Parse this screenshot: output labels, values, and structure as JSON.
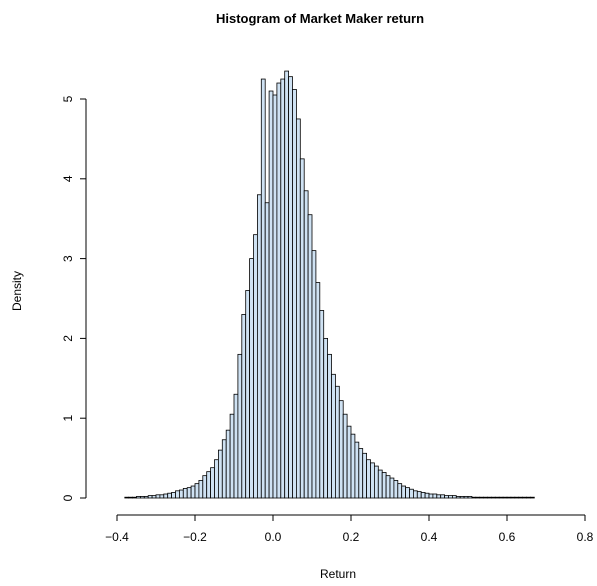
{
  "chart_data": {
    "type": "bar",
    "title": "Histogram of Market Maker return",
    "xlabel": "Return",
    "ylabel": "Density",
    "xlim": [
      -0.44,
      0.79
    ],
    "ylim": [
      0,
      5.38
    ],
    "xticks": [
      "-0.4",
      "-0.2",
      "0.0",
      "0.2",
      "0.4",
      "0.6",
      "0.8"
    ],
    "yticks": [
      "0",
      "1",
      "2",
      "3",
      "4",
      "5"
    ],
    "bin_width": 0.01,
    "bar_color": "#cfe2f3",
    "bins_start": [
      -0.38,
      -0.37,
      -0.36,
      -0.35,
      -0.34,
      -0.33,
      -0.32,
      -0.31,
      -0.3,
      -0.29,
      -0.28,
      -0.27,
      -0.26,
      -0.25,
      -0.24,
      -0.23,
      -0.22,
      -0.21,
      -0.2,
      -0.19,
      -0.18,
      -0.17,
      -0.16,
      -0.15,
      -0.14,
      -0.13,
      -0.12,
      -0.11,
      -0.1,
      -0.09,
      -0.08,
      -0.07,
      -0.06,
      -0.05,
      -0.04,
      -0.03,
      -0.02,
      -0.01,
      0.0,
      0.01,
      0.02,
      0.03,
      0.04,
      0.05,
      0.06,
      0.07,
      0.08,
      0.09,
      0.1,
      0.11,
      0.12,
      0.13,
      0.14,
      0.15,
      0.16,
      0.17,
      0.18,
      0.19,
      0.2,
      0.21,
      0.22,
      0.23,
      0.24,
      0.25,
      0.26,
      0.27,
      0.28,
      0.29,
      0.3,
      0.31,
      0.32,
      0.33,
      0.34,
      0.35,
      0.36,
      0.37,
      0.38,
      0.39,
      0.4,
      0.41,
      0.42,
      0.43,
      0.44,
      0.45,
      0.46,
      0.47,
      0.48,
      0.49,
      0.5,
      0.51,
      0.52,
      0.53,
      0.54,
      0.55,
      0.56,
      0.57,
      0.58,
      0.59,
      0.6,
      0.61,
      0.62,
      0.63,
      0.64,
      0.65,
      0.66
    ],
    "density": [
      0.01,
      0.01,
      0.01,
      0.02,
      0.02,
      0.02,
      0.03,
      0.03,
      0.04,
      0.04,
      0.05,
      0.06,
      0.07,
      0.09,
      0.1,
      0.12,
      0.13,
      0.15,
      0.18,
      0.22,
      0.28,
      0.33,
      0.38,
      0.48,
      0.6,
      0.73,
      0.85,
      1.05,
      1.3,
      1.8,
      2.3,
      2.6,
      3.0,
      3.3,
      3.8,
      5.25,
      3.7,
      5.1,
      5.05,
      5.2,
      5.25,
      5.35,
      5.28,
      5.12,
      4.75,
      4.25,
      3.85,
      3.55,
      3.1,
      2.7,
      2.35,
      2.0,
      1.8,
      1.55,
      1.4,
      1.22,
      1.05,
      0.9,
      0.8,
      0.7,
      0.62,
      0.56,
      0.48,
      0.44,
      0.4,
      0.35,
      0.32,
      0.28,
      0.25,
      0.22,
      0.18,
      0.15,
      0.13,
      0.11,
      0.09,
      0.08,
      0.07,
      0.06,
      0.05,
      0.05,
      0.04,
      0.04,
      0.03,
      0.03,
      0.03,
      0.02,
      0.02,
      0.02,
      0.02,
      0.01,
      0.01,
      0.01,
      0.01,
      0.01,
      0.01,
      0.01,
      0.01,
      0.01,
      0.01,
      0.01,
      0.01,
      0.01,
      0.01,
      0.01,
      0.01
    ]
  }
}
